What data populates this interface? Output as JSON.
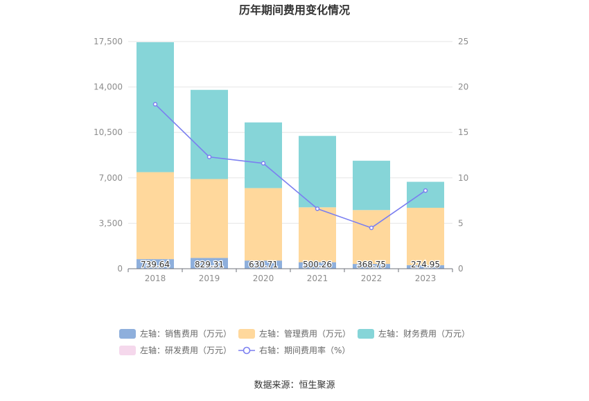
{
  "chart_data": {
    "type": "bar",
    "title": "历年期间费用变化情况",
    "categories": [
      "2018",
      "2019",
      "2020",
      "2021",
      "2022",
      "2023"
    ],
    "left_axis": {
      "ylim": [
        0,
        17500
      ],
      "ticks": [
        "0",
        "3,500",
        "7,000",
        "10,500",
        "14,000",
        "17,500"
      ],
      "tick_values": [
        0,
        3500,
        7000,
        10500,
        14000,
        17500
      ]
    },
    "right_axis": {
      "ylim": [
        0,
        25
      ],
      "ticks": [
        "0",
        "5",
        "10",
        "15",
        "20",
        "25"
      ],
      "tick_values": [
        0,
        5,
        10,
        15,
        20,
        25
      ]
    },
    "series": [
      {
        "name": "左轴：销售费用（万元）",
        "kind": "bar",
        "axis": "left",
        "color": "#8eafdc",
        "values": [
          739.64,
          829.31,
          630.71,
          500.26,
          368.75,
          274.95
        ],
        "labels": [
          "739.64",
          "829.31",
          "630.71",
          "500.26",
          "368.75",
          "274.95"
        ]
      },
      {
        "name": "左轴：管理费用（万元）",
        "kind": "bar",
        "axis": "left",
        "color": "#ffd89c",
        "values": [
          6700,
          6080,
          5580,
          4230,
          4150,
          4420
        ]
      },
      {
        "name": "左轴：财务费用（万元）",
        "kind": "bar",
        "axis": "left",
        "color": "#86d5d8",
        "values": [
          10010,
          6870,
          5060,
          5500,
          3800,
          2000
        ]
      },
      {
        "name": "左轴：研发费用（万元）",
        "kind": "bar",
        "axis": "left",
        "color": "#f5d8ec",
        "values": [
          0,
          0,
          0,
          0,
          0,
          0
        ]
      },
      {
        "name": "右轴：期间费用率（%）",
        "kind": "line",
        "axis": "right",
        "color": "#7b7ff0",
        "values": [
          18.1,
          12.3,
          11.6,
          6.6,
          4.5,
          8.6
        ]
      }
    ],
    "legend_position": "bottom",
    "grid": true
  },
  "source": "数据来源：恒生聚源"
}
